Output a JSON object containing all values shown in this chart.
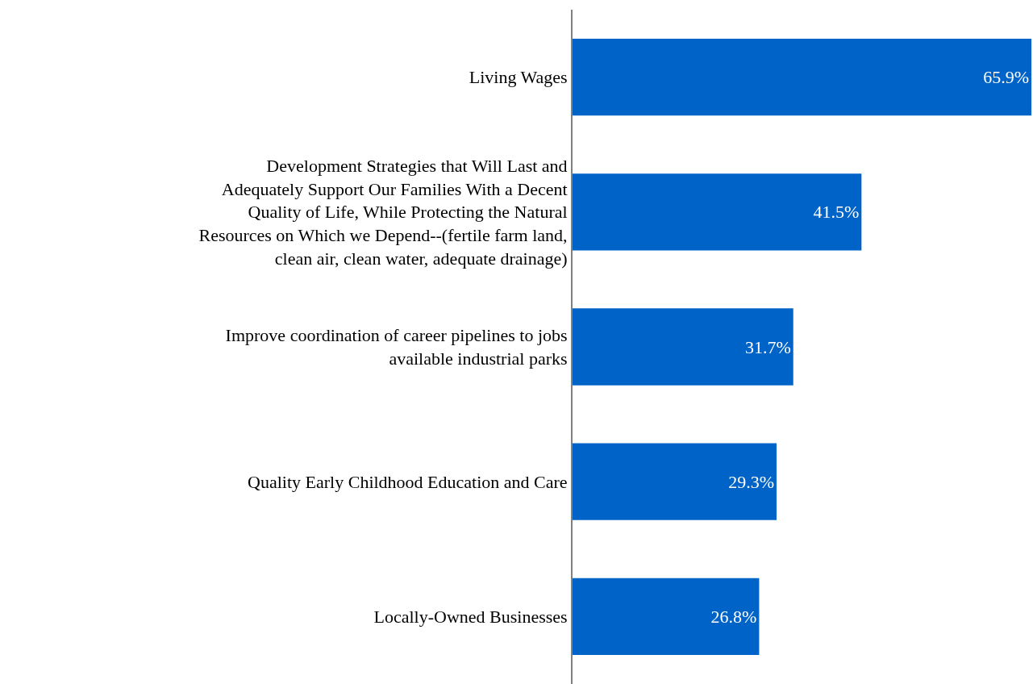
{
  "chart_data": {
    "type": "bar",
    "orientation": "horizontal",
    "categories": [
      "Living Wages",
      "Development Strategies that Will Last and Adequately Support Our Families With a Decent Quality of Life, While Protecting the Natural Resources on Which we Depend--(fertile farm land, clean air, clean water, adequate drainage)",
      "Improve coordination of career pipelines to jobs available industrial parks",
      "Quality Early Childhood Education and Care",
      "Locally-Owned Businesses"
    ],
    "values": [
      65.9,
      41.5,
      31.7,
      29.3,
      26.8
    ],
    "value_labels": [
      "65.9%",
      "41.5%",
      "31.7%",
      "29.3%",
      "26.8%"
    ],
    "color": "#0063c8"
  }
}
